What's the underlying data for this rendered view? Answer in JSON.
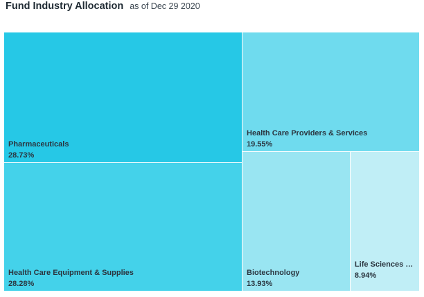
{
  "header": {
    "title": "Fund Industry Allocation",
    "subtitle": "as of Dec 29 2020"
  },
  "chart_data": {
    "type": "treemap",
    "title": "Fund Industry Allocation",
    "subtitle": "as of Dec 29 2020",
    "unit": "%",
    "items": [
      {
        "name": "Pharmaceuticals",
        "label": "Pharmaceuticals",
        "value": 28.73,
        "value_label": "28.73%",
        "color": "#26c8e6"
      },
      {
        "name": "Health Care Equipment & Supplies",
        "label": "Health Care Equipment & Supplies",
        "value": 28.28,
        "value_label": "28.28%",
        "color": "#44d2ea"
      },
      {
        "name": "Health Care Providers & Services",
        "label": "Health Care Providers & Services",
        "value": 19.55,
        "value_label": "19.55%",
        "color": "#6fdbee"
      },
      {
        "name": "Biotechnology",
        "label": "Biotechnology",
        "value": 13.93,
        "value_label": "13.93%",
        "color": "#99e5f2"
      },
      {
        "name": "Life Sciences Tools & Services",
        "label": "Life Sciences Tool...",
        "value": 8.94,
        "value_label": "8.94%",
        "color": "#c0eef6"
      }
    ]
  }
}
